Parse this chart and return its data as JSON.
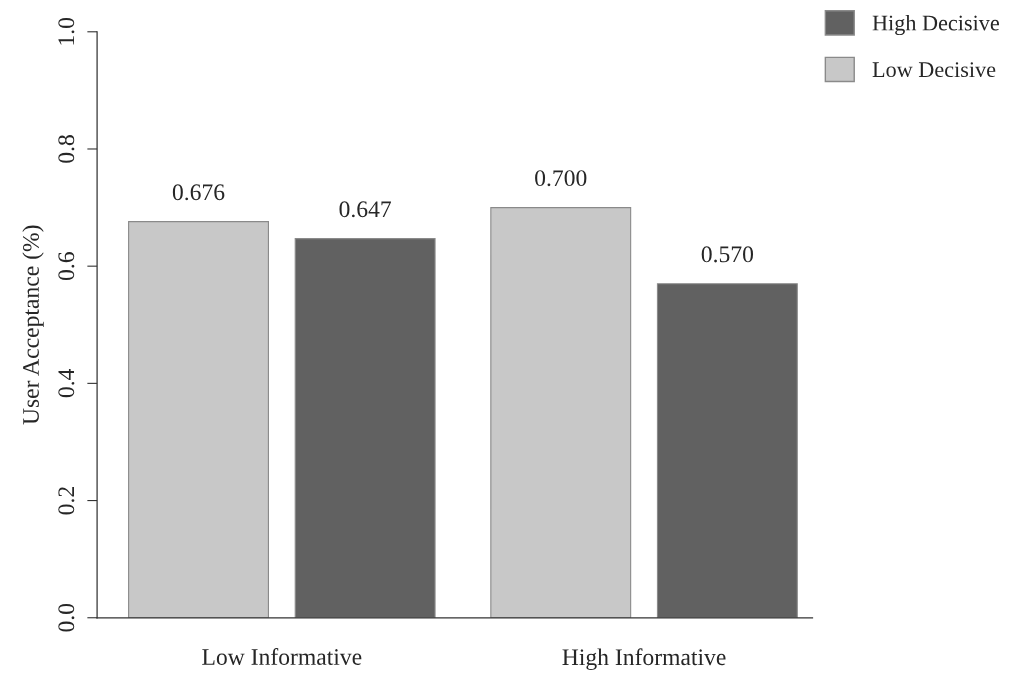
{
  "chart_data": {
    "type": "bar",
    "ylabel": "User Acceptance (%)",
    "categories": [
      "Low Informative",
      "High Informative"
    ],
    "series": [
      {
        "name": "Low Decisive",
        "color": "#c8c8c8",
        "values": [
          0.676,
          0.7
        ],
        "value_labels": [
          "0.676",
          "0.700"
        ]
      },
      {
        "name": "High Decisive",
        "color": "#616161",
        "values": [
          0.647,
          0.57
        ],
        "value_labels": [
          "0.647",
          "0.570"
        ]
      }
    ],
    "ylim": [
      0,
      1.0
    ],
    "yticks": [
      {
        "value": 0,
        "label": "0.0"
      },
      0.2,
      0.4,
      0.6,
      0.8,
      {
        "value": 1.0,
        "label": "1.0"
      }
    ],
    "grid": false,
    "legend": "top right"
  }
}
